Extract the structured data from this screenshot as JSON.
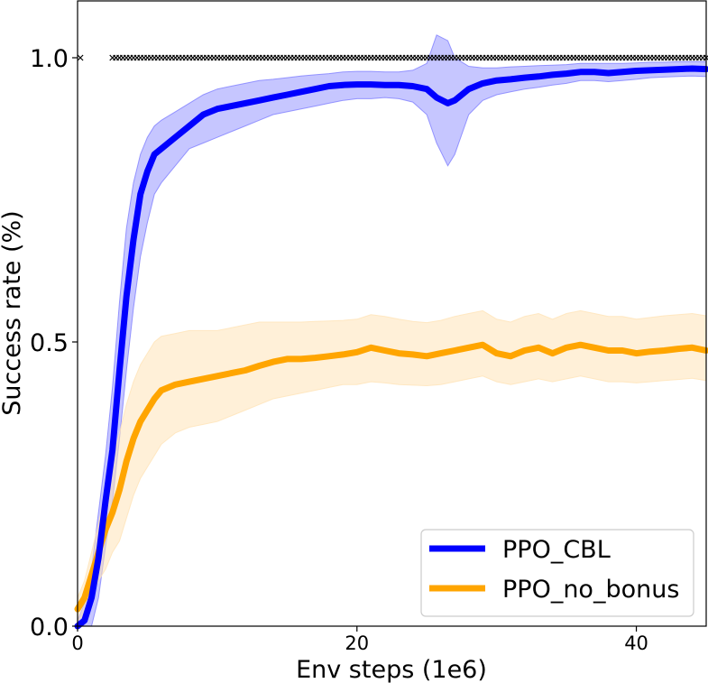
{
  "chart_data": {
    "type": "line",
    "title": "",
    "xlabel": "Env steps (1e6)",
    "ylabel": "Success rate (%)",
    "xlim": [
      0,
      45
    ],
    "ylim": [
      0,
      1.1
    ],
    "x_ticks": [
      0,
      20,
      40
    ],
    "x_tick_labels": [
      "0",
      "20",
      "40"
    ],
    "y_ticks": [
      0.0,
      0.5,
      1.0
    ],
    "y_tick_labels": [
      "0.0",
      "0.5",
      "1.0"
    ],
    "grid": false,
    "legend_position": "bottom-right",
    "reference_markers": {
      "marker": "x",
      "color": "#000000",
      "y": 1.0,
      "x_start": 2.5,
      "x_end": 45,
      "step": 0.25,
      "extra_x": [
        0.2
      ]
    },
    "series": [
      {
        "name": "PPO_CBL",
        "color": "#0000ff",
        "band_color": "#8080ff",
        "x": [
          0,
          0.5,
          1,
          1.5,
          2,
          2.5,
          3,
          3.5,
          4,
          4.5,
          5,
          5.5,
          6,
          7,
          8,
          9,
          10,
          11,
          12,
          13,
          14,
          15,
          16,
          17,
          18,
          19,
          20,
          21,
          22,
          23,
          24,
          25,
          25.7,
          26.5,
          27,
          28,
          29,
          30,
          31,
          32,
          33,
          34,
          35,
          36,
          37,
          38,
          39,
          40,
          41,
          42,
          43,
          44,
          45
        ],
        "values": [
          0.0,
          0.01,
          0.05,
          0.12,
          0.22,
          0.31,
          0.45,
          0.58,
          0.68,
          0.76,
          0.8,
          0.83,
          0.84,
          0.86,
          0.88,
          0.9,
          0.91,
          0.915,
          0.92,
          0.925,
          0.93,
          0.935,
          0.94,
          0.945,
          0.95,
          0.952,
          0.953,
          0.953,
          0.952,
          0.952,
          0.95,
          0.945,
          0.93,
          0.92,
          0.925,
          0.945,
          0.955,
          0.96,
          0.962,
          0.965,
          0.967,
          0.97,
          0.972,
          0.975,
          0.975,
          0.973,
          0.975,
          0.977,
          0.978,
          0.979,
          0.98,
          0.981,
          0.98
        ],
        "lower": [
          0.0,
          0.0,
          0.0,
          0.05,
          0.14,
          0.22,
          0.33,
          0.45,
          0.56,
          0.65,
          0.71,
          0.76,
          0.78,
          0.81,
          0.84,
          0.85,
          0.86,
          0.87,
          0.88,
          0.89,
          0.9,
          0.905,
          0.91,
          0.915,
          0.92,
          0.925,
          0.928,
          0.928,
          0.93,
          0.928,
          0.922,
          0.9,
          0.85,
          0.81,
          0.83,
          0.9,
          0.925,
          0.935,
          0.94,
          0.945,
          0.948,
          0.952,
          0.955,
          0.96,
          0.96,
          0.958,
          0.96,
          0.962,
          0.965,
          0.966,
          0.967,
          0.968,
          0.967
        ],
        "upper": [
          0.01,
          0.04,
          0.1,
          0.2,
          0.3,
          0.42,
          0.57,
          0.7,
          0.78,
          0.83,
          0.86,
          0.88,
          0.89,
          0.905,
          0.92,
          0.935,
          0.945,
          0.95,
          0.955,
          0.96,
          0.962,
          0.965,
          0.968,
          0.97,
          0.972,
          0.975,
          0.976,
          0.976,
          0.975,
          0.975,
          0.978,
          0.99,
          1.04,
          1.03,
          1.0,
          0.985,
          0.982,
          0.982,
          0.984,
          0.985,
          0.986,
          0.987,
          0.988,
          0.99,
          0.99,
          0.99,
          0.99,
          0.991,
          0.992,
          0.992,
          0.993,
          0.993,
          0.993
        ]
      },
      {
        "name": "PPO_no_bonus",
        "color": "#ffa500",
        "band_color": "#ffe4b8",
        "x": [
          0,
          0.5,
          1,
          1.5,
          2,
          2.5,
          3,
          3.5,
          4,
          4.5,
          5,
          5.5,
          6,
          7,
          8,
          9,
          10,
          11,
          12,
          13,
          14,
          15,
          16,
          17,
          18,
          19,
          20,
          21,
          22,
          23,
          24,
          25,
          26,
          27,
          28,
          29,
          30,
          31,
          32,
          33,
          34,
          35,
          36,
          37,
          38,
          39,
          40,
          41,
          42,
          43,
          44,
          45
        ],
        "values": [
          0.03,
          0.05,
          0.09,
          0.13,
          0.17,
          0.2,
          0.24,
          0.29,
          0.33,
          0.36,
          0.38,
          0.4,
          0.415,
          0.425,
          0.43,
          0.435,
          0.44,
          0.445,
          0.45,
          0.458,
          0.465,
          0.47,
          0.47,
          0.472,
          0.475,
          0.478,
          0.482,
          0.49,
          0.485,
          0.48,
          0.478,
          0.475,
          0.48,
          0.485,
          0.49,
          0.495,
          0.48,
          0.475,
          0.485,
          0.49,
          0.48,
          0.49,
          0.495,
          0.49,
          0.485,
          0.485,
          0.48,
          0.483,
          0.485,
          0.488,
          0.49,
          0.485
        ],
        "lower": [
          0.01,
          0.02,
          0.05,
          0.08,
          0.1,
          0.13,
          0.15,
          0.19,
          0.23,
          0.26,
          0.28,
          0.3,
          0.32,
          0.34,
          0.35,
          0.355,
          0.36,
          0.37,
          0.38,
          0.39,
          0.4,
          0.405,
          0.41,
          0.415,
          0.42,
          0.425,
          0.425,
          0.43,
          0.428,
          0.425,
          0.424,
          0.423,
          0.425,
          0.43,
          0.435,
          0.44,
          0.43,
          0.425,
          0.43,
          0.435,
          0.43,
          0.435,
          0.44,
          0.435,
          0.43,
          0.43,
          0.428,
          0.43,
          0.432,
          0.434,
          0.436,
          0.432
        ],
        "upper": [
          0.05,
          0.08,
          0.13,
          0.18,
          0.24,
          0.29,
          0.34,
          0.39,
          0.43,
          0.46,
          0.48,
          0.5,
          0.51,
          0.515,
          0.52,
          0.52,
          0.52,
          0.525,
          0.53,
          0.535,
          0.535,
          0.535,
          0.535,
          0.536,
          0.537,
          0.538,
          0.54,
          0.548,
          0.545,
          0.54,
          0.536,
          0.534,
          0.538,
          0.545,
          0.55,
          0.555,
          0.54,
          0.535,
          0.545,
          0.55,
          0.54,
          0.55,
          0.555,
          0.55,
          0.545,
          0.545,
          0.54,
          0.543,
          0.546,
          0.548,
          0.55,
          0.546
        ]
      }
    ]
  }
}
